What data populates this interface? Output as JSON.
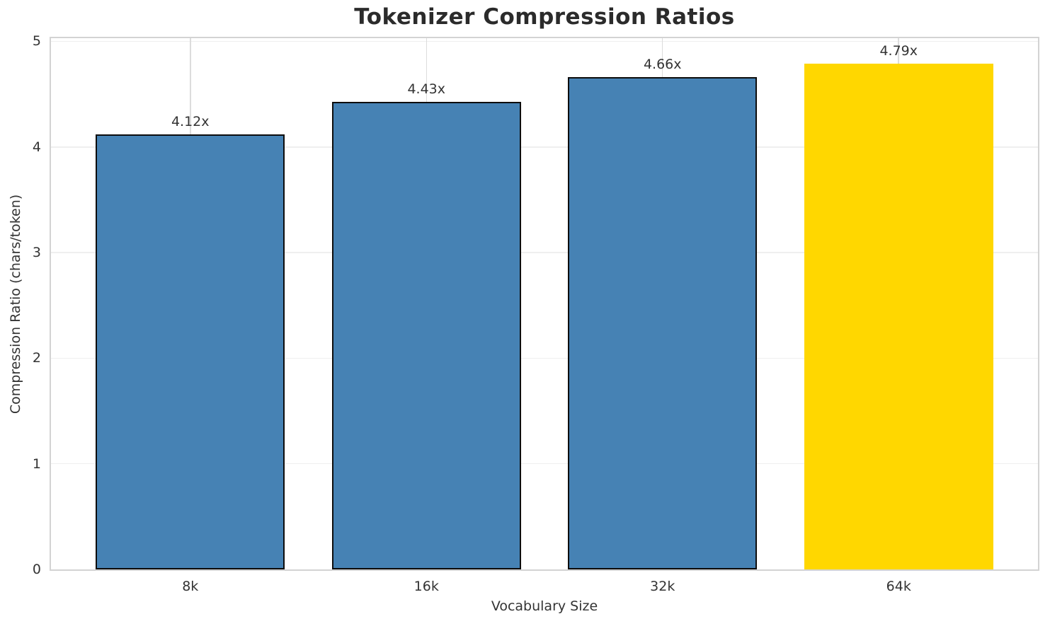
{
  "chart_data": {
    "type": "bar",
    "title": "Tokenizer Compression Ratios",
    "xlabel": "Vocabulary Size",
    "ylabel": "Compression Ratio (chars/token)",
    "categories": [
      "8k",
      "16k",
      "32k",
      "64k"
    ],
    "values": [
      4.12,
      4.43,
      4.66,
      4.79
    ],
    "bar_labels": [
      "4.12x",
      "4.43x",
      "4.66x",
      "4.79x"
    ],
    "yticks": [
      0,
      1,
      2,
      3,
      4,
      5
    ],
    "ytick_labels": [
      "0",
      "1",
      "2",
      "3",
      "4",
      "5"
    ],
    "ylim": [
      0,
      5.03
    ],
    "xlim": [
      -0.59,
      3.59
    ],
    "bar_width_fraction": 0.8,
    "grid": true,
    "legend_position": "none",
    "highlight_index": 3,
    "bar_color": "#4682B4",
    "highlight_color": "#FFD700",
    "bar_edge_color": "#0d0d0d",
    "text_color": "#333333",
    "title_color": "#2b2b2b",
    "grid_color_vertical": "#dcdcdc",
    "grid_color_horizontal": "#efefef",
    "spine_color": "#d3d3d3",
    "background_color": "#ffffff"
  }
}
